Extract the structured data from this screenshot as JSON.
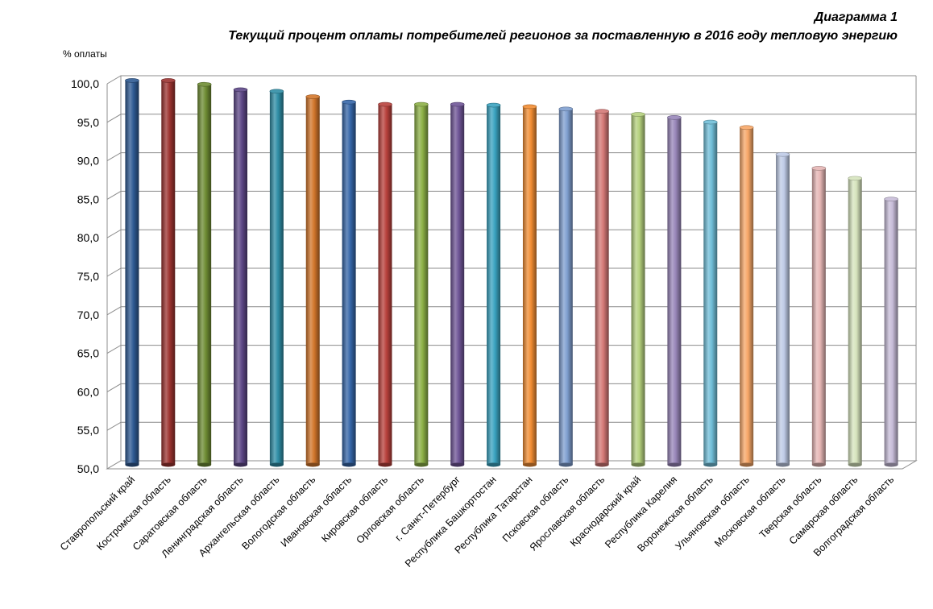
{
  "chart_data": {
    "type": "bar",
    "title": "Диаграмма 1",
    "subtitle": "Текущий процент оплаты потребителей  регионов за поставленную  в 2016 году тепловую  энергию",
    "ylabel": "% оплаты",
    "xlabel": "",
    "ylim": [
      50,
      100
    ],
    "ytick_step": 5,
    "ytick_labels": [
      "50,0",
      "55,0",
      "60,0",
      "65,0",
      "70,0",
      "75,0",
      "80,0",
      "85,0",
      "90,0",
      "95,0",
      "100,0"
    ],
    "grid": true,
    "categories": [
      "Ставропольский край",
      "Костромская область",
      "Саратовская область",
      "Ленинградская область",
      "Архангельская область",
      "Вологодская область",
      "Ивановская область",
      "Кировская область",
      "Орловская область",
      "г. Санкт-Петербург",
      "Республика Башкортостан",
      "Республика Татарстан",
      "Псковская область",
      "Ярославская область",
      "Краснодарский край",
      "Республика Карелия",
      "Воронежская область",
      "Ульяновская область",
      "Московская область",
      "Тверская область",
      "Самарская область",
      "Волгоградская область"
    ],
    "values": [
      99.9,
      99.9,
      99.4,
      98.7,
      98.5,
      97.8,
      97.1,
      96.8,
      96.8,
      96.8,
      96.7,
      96.5,
      96.2,
      95.9,
      95.5,
      95.1,
      94.5,
      93.8,
      90.3,
      88.5,
      87.2,
      84.5
    ],
    "colors": [
      "#2e5a93",
      "#9c3330",
      "#6e8c33",
      "#5d4787",
      "#2f8ea6",
      "#d2762b",
      "#3566a8",
      "#b8413c",
      "#8cb046",
      "#6f5596",
      "#3aa3c0",
      "#f28d33",
      "#7f9fd0",
      "#d47876",
      "#b4d07d",
      "#9886b9",
      "#70bed8",
      "#f7a768",
      "#bfcbe6",
      "#e5b6b4",
      "#d6e4bd",
      "#c7bcd8"
    ]
  }
}
